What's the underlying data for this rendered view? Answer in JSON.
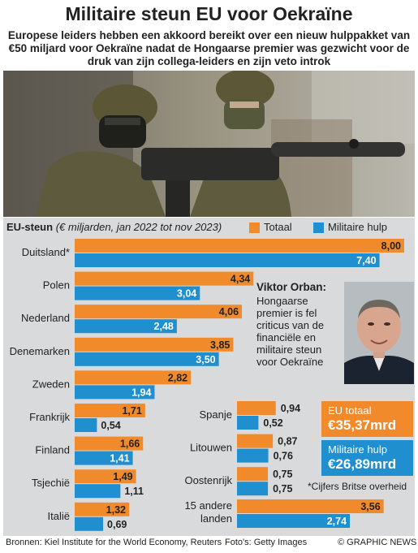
{
  "title": "Militaire steun EU voor Oekraïne",
  "subtitle": "Europese leiders hebben een akkoord bereikt over een nieuw hulppakket van €50 miljard voor Oekraïne nadat de Hongaarse premier was gezwicht voor de druk van zijn collega-leiders en zijn veto introk",
  "legend": {
    "title_bold": "EU-steun",
    "title_italic": "(€ miljarden, jan 2022 tot nov 2023)",
    "totaal": "Totaal",
    "militair": "Militaire hulp"
  },
  "colors": {
    "totaal": "#f08a2a",
    "militair": "#1f8fd0",
    "panel": "#d9dadb"
  },
  "chart_data": {
    "type": "bar",
    "units": "€ miljarden",
    "series_names": [
      "Totaal",
      "Militaire hulp"
    ],
    "rows": [
      {
        "label": "Duitsland*",
        "totaal": 8.0,
        "militair": 7.4,
        "totaal_label": "8,00",
        "militair_label": "7,40"
      },
      {
        "label": "Polen",
        "totaal": 4.34,
        "militair": 3.04,
        "totaal_label": "4,34",
        "militair_label": "3,04"
      },
      {
        "label": "Nederland",
        "totaal": 4.06,
        "militair": 2.48,
        "totaal_label": "4,06",
        "militair_label": "2,48"
      },
      {
        "label": "Denemarken",
        "totaal": 3.85,
        "militair": 3.5,
        "totaal_label": "3,85",
        "militair_label": "3,50"
      },
      {
        "label": "Zweden",
        "totaal": 2.82,
        "militair": 1.94,
        "totaal_label": "2,82",
        "militair_label": "1,94"
      },
      {
        "label": "Frankrijk",
        "totaal": 1.71,
        "militair": 0.54,
        "totaal_label": "1,71",
        "militair_label": "0,54"
      },
      {
        "label": "Finland",
        "totaal": 1.66,
        "militair": 1.41,
        "totaal_label": "1,66",
        "militair_label": "1,41"
      },
      {
        "label": "Tsjechië",
        "totaal": 1.49,
        "militair": 1.11,
        "totaal_label": "1,49",
        "militair_label": "1,11"
      },
      {
        "label": "Italië",
        "totaal": 1.32,
        "militair": 0.69,
        "totaal_label": "1,32",
        "militair_label": "0,69"
      }
    ],
    "rows_right": [
      {
        "label": "Spanje",
        "totaal": 0.94,
        "militair": 0.52,
        "totaal_label": "0,94",
        "militair_label": "0,52"
      },
      {
        "label": "Litouwen",
        "totaal": 0.87,
        "militair": 0.76,
        "totaal_label": "0,87",
        "militair_label": "0,76"
      },
      {
        "label": "Oostenrijk",
        "totaal": 0.75,
        "militair": 0.75,
        "totaal_label": "0,75",
        "militair_label": "0,75"
      }
    ],
    "row_other": {
      "label_line1": "15 andere",
      "label_line2": "landen",
      "totaal": 3.56,
      "militair": 2.74,
      "totaal_label": "3,56",
      "militair_label": "2,74"
    }
  },
  "orban": {
    "name": "Viktor Orban:",
    "text": "Hongaarse premier is fel criticus van de financiële en militaire steun voor Oekraïne"
  },
  "totals": {
    "eu_label": "EU totaal",
    "eu_value": "€35,37mrd",
    "mil_label": "Militaire hulp",
    "mil_value": "€26,89mrd"
  },
  "note": "*Cijfers Britse overheid",
  "footer": {
    "sources": "Bronnen: Kiel Institute for the World Economy, Reuters",
    "photos": "Foto's: Getty Images",
    "credit": "© GRAPHIC NEWS"
  }
}
